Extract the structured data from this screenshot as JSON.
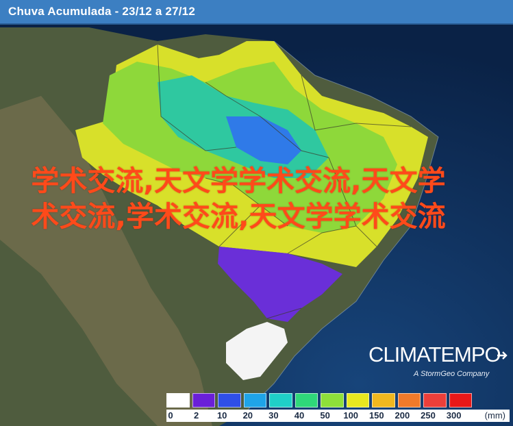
{
  "header": {
    "title": "Chuva Acumulada - 23/12 a 27/12"
  },
  "watermark": {
    "text": "学术交流,天文学学术交流,天文学术交流,学术交流,天文学学术交流"
  },
  "brand": {
    "name": "CLIMATEMPO",
    "tagline": "A StormGeo Company",
    "arrow_icon": "arrow-icon"
  },
  "legend": {
    "unit": "(mm)",
    "labels": [
      "0",
      "2",
      "10",
      "20",
      "30",
      "40",
      "50",
      "100",
      "150",
      "200",
      "250",
      "300"
    ],
    "colors": [
      "#ffffff",
      "#6a1fd8",
      "#2f4fe8",
      "#1fa4e8",
      "#1fd0c8",
      "#2fd87a",
      "#8ee03a",
      "#e8e81f",
      "#f0b81f",
      "#f07a2a",
      "#ec3f3a",
      "#e81818"
    ]
  },
  "map": {
    "ocean_color": "#0d2a52",
    "land_color": "#5e6a48"
  }
}
